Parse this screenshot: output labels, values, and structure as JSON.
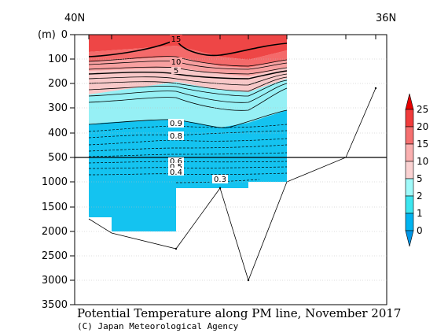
{
  "chart_data": {
    "type": "heatmap",
    "title": "Potential Temperature along PM line, November 2017",
    "credit": "(C) Japan Meteorological Agency",
    "y_unit_label": "(m)",
    "x_labels": [
      "40N",
      "36N"
    ],
    "y_ticks_upper": [
      0,
      100,
      200,
      300,
      400,
      500
    ],
    "y_ticks_lower": [
      1000,
      1500,
      2000,
      2500,
      3000,
      3500
    ],
    "y_split_depth": 500,
    "contour_labels": [
      "15",
      "10",
      "5",
      "0.9",
      "0.8",
      "0.6",
      "0.5",
      "0.4",
      "0.3"
    ],
    "colorbar": {
      "levels": [
        "25",
        "20",
        "15",
        "10",
        "5",
        "2",
        "1",
        "0"
      ],
      "colors": [
        "#e60000",
        "#f03c3c",
        "#f57070",
        "#fab0b0",
        "#fad2d2",
        "#a0fafa",
        "#3ce6f0",
        "#00b4f0",
        "#0096e6"
      ]
    },
    "layers": [
      {
        "name": "over 25",
        "color": "#e61e1e"
      },
      {
        "name": "20-25",
        "color": "#ee4646"
      },
      {
        "name": "15-20",
        "color": "#f46a6a"
      },
      {
        "name": "10-15",
        "color": "#f8a0a0"
      },
      {
        "name": "5-10",
        "color": "#f8c8c8"
      },
      {
        "name": "2-5",
        "color": "#96f0f5"
      },
      {
        "name": "1-2",
        "color": "#3ce1ec"
      },
      {
        "name": "0-1",
        "color": "#14c3f0"
      }
    ]
  }
}
